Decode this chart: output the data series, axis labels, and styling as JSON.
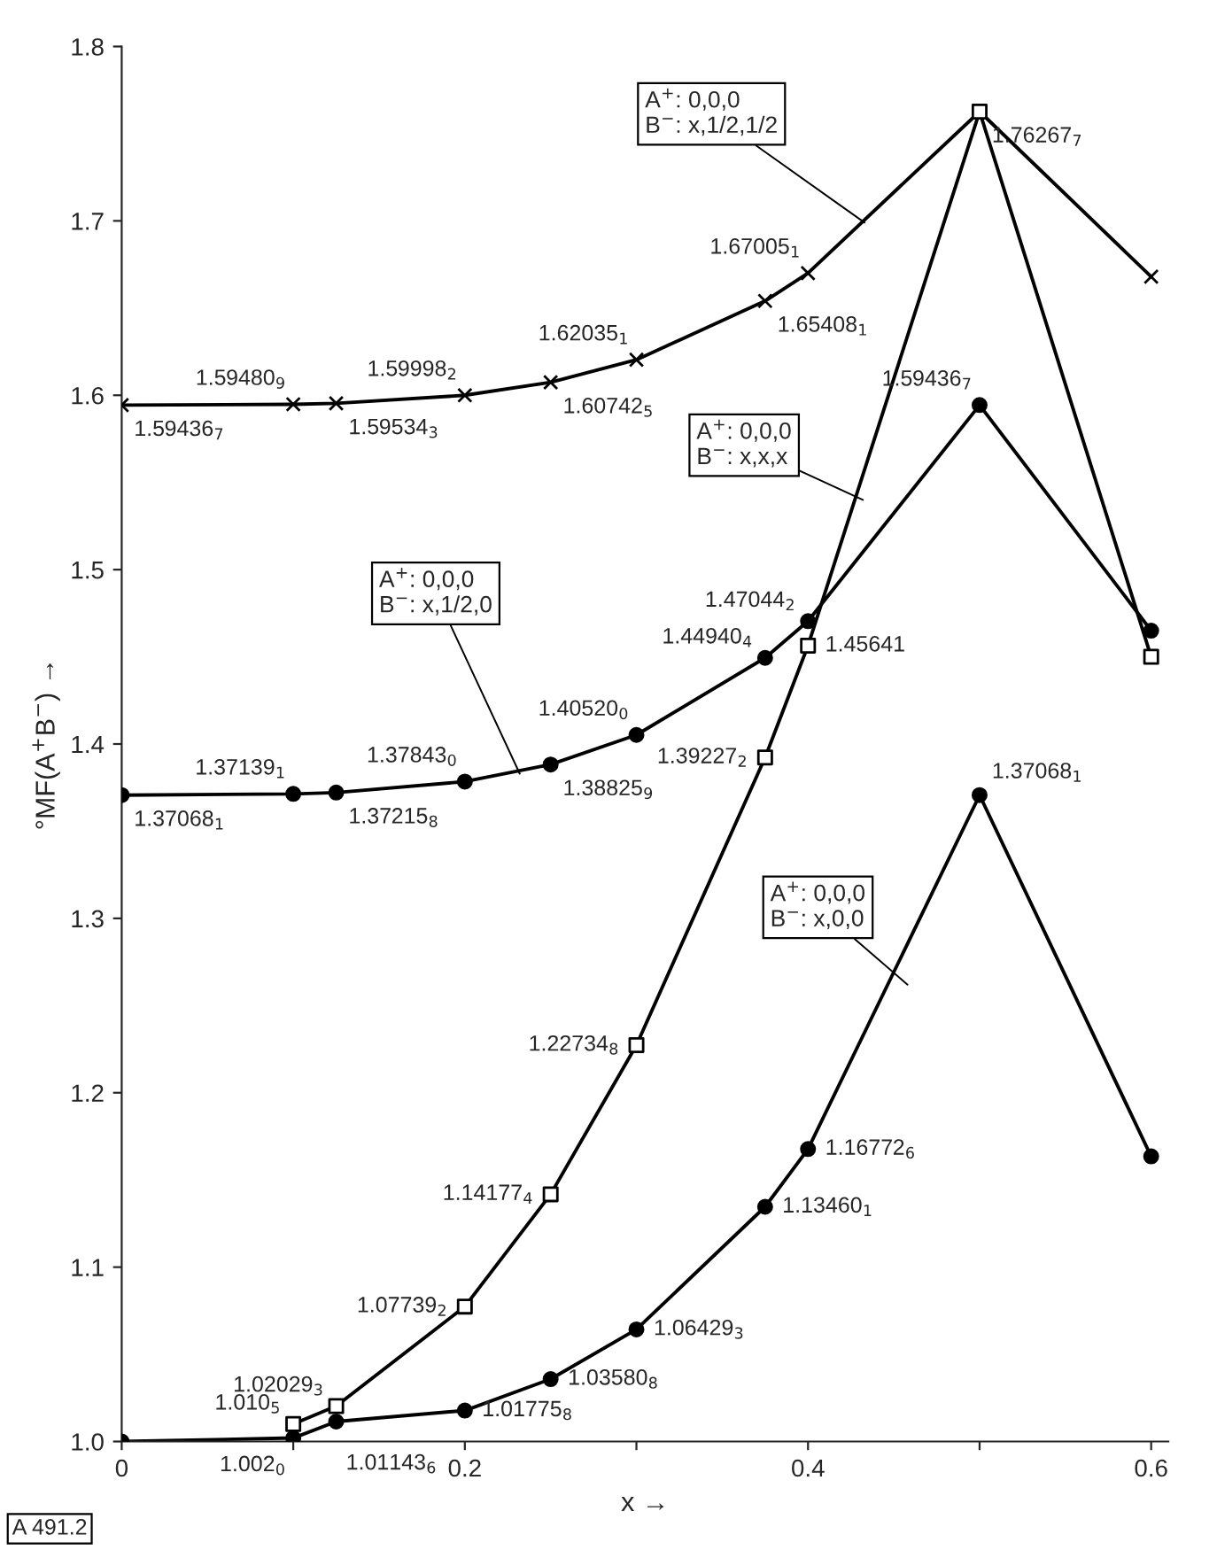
{
  "chart_data": {
    "type": "line",
    "xlabel": "x →",
    "ylabel": "°MF(A$^{+}$B$^{−}$) →",
    "xlim": [
      0,
      0.61
    ],
    "ylim": [
      1.0,
      1.8
    ],
    "xticks": [
      0,
      {
        "value": 0.1,
        "label": null
      },
      0.2,
      {
        "value": 0.3,
        "label": null
      },
      0.4,
      {
        "value": 0.5,
        "label": null
      },
      0.6
    ],
    "yticks": [
      {
        "value": 1,
        "label": "1.0"
      },
      1.1,
      1.2,
      1.3,
      1.4,
      1.5,
      1.6,
      1.7,
      1.8
    ],
    "grid": false,
    "legend": false,
    "line_style": "solid",
    "annotations": [
      "A 491.2"
    ],
    "series": [
      {
        "name": "A$^{+}$: 0,0,0\nB$^{−}$: x,1/2,1/2",
        "color": "#000000",
        "marker": "cross",
        "x": [
          0,
          0.1,
          0.125,
          0.2,
          0.25,
          0.3,
          0.375,
          0.4,
          0.5,
          0.6
        ],
        "values": [
          1.59436,
          1.5948,
          1.59534,
          1.59998,
          1.60742,
          1.62035,
          1.65408,
          1.67005,
          1.76267,
          1.668
        ],
        "value_labels": [
          "1.59436$_{7}$",
          "1.59480$_{9}$",
          "1.59534$_{3}$",
          "1.59998$_{2}$",
          "1.60742$_{5}$",
          "1.62035$_{1}$",
          "1.65408$_{1}$",
          "1.67005$_{1}$",
          "1.76267$_{7}$",
          null
        ]
      },
      {
        "name": "A$^{+}$: 0,0,0\nB$^{−}$: x,1/2,0",
        "color": "#000000",
        "marker": "circle",
        "x": [
          0,
          0.1,
          0.125,
          0.2,
          0.25,
          0.3,
          0.375,
          0.4,
          0.5,
          0.6
        ],
        "values": [
          1.37068,
          1.37139,
          1.37215,
          1.37843,
          1.38825,
          1.4052,
          1.4494,
          1.47044,
          1.59436,
          1.465
        ],
        "value_labels": [
          "1.37068$_{1}$",
          "1.37139$_{1}$",
          "1.37215$_{8}$",
          "1.37843$_{0}$",
          "1.38825$_{9}$",
          "1.40520$_{0}$",
          "1.44940$_{4}$",
          "1.47044$_{2}$",
          "1.59436$_{7}$",
          null
        ]
      },
      {
        "name": "A$^{+}$: 0,0,0\nB$^{−}$: x,x,x",
        "color": "#000000",
        "marker": "square",
        "x": [
          0.1,
          0.125,
          0.2,
          0.25,
          0.3,
          0.375,
          0.4,
          0.5,
          0.6
        ],
        "values": [
          1.01,
          1.02029,
          1.07739,
          1.14177,
          1.22734,
          1.39227,
          1.45641,
          1.76267,
          1.45
        ],
        "value_labels": [
          "1.010$_{5}$",
          "1.02029$_{3}$",
          "1.07739$_{2}$",
          "1.14177$_{4}$",
          "1.22734$_{8}$",
          "1.39227$_{2}$",
          "1.45641",
          null,
          null
        ]
      },
      {
        "name": "A$^{+}$: 0,0,0\nB$^{−}$: x,0,0",
        "color": "#000000",
        "marker": "circle",
        "x": [
          0,
          0.1,
          0.125,
          0.2,
          0.25,
          0.3,
          0.375,
          0.4,
          0.5,
          0.6
        ],
        "values": [
          1.0,
          1.002,
          1.01143,
          1.01775,
          1.0358,
          1.06429,
          1.1346,
          1.16772,
          1.37068,
          1.1635
        ],
        "value_labels": [
          null,
          "1.002$_{0}$",
          "1.01143$_{6}$",
          "1.01775$_{8}$",
          "1.03580$_{8}$",
          "1.06429$_{3}$",
          "1.13460$_{1}$",
          "1.16772$_{6}$",
          "1.37068$_{1}$",
          null
        ]
      }
    ]
  }
}
